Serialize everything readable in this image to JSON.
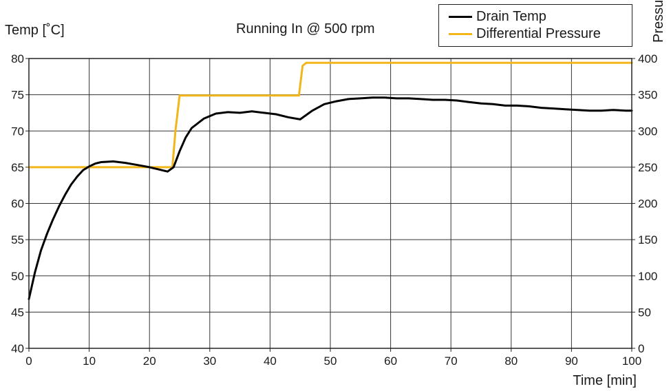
{
  "chart_data": {
    "type": "line",
    "title": "Running In @ 500 rpm",
    "xlabel": "Time [min]",
    "ylabel": "Temp [˚C]",
    "y2label": "Pressure",
    "xlim": [
      0,
      100
    ],
    "ylim": [
      40,
      80
    ],
    "y2lim": [
      0,
      400
    ],
    "xticks": [
      0,
      10,
      20,
      30,
      40,
      50,
      60,
      70,
      80,
      90,
      100
    ],
    "yticks": [
      40,
      45,
      50,
      55,
      60,
      65,
      70,
      75,
      80
    ],
    "y2ticks": [
      0,
      50,
      100,
      150,
      200,
      250,
      300,
      350,
      400
    ],
    "grid": true,
    "legend_position": "top-right",
    "series": [
      {
        "name": "Drain Temp",
        "color": "#000000",
        "axis": "left",
        "x": [
          0,
          1,
          2,
          3,
          4,
          5,
          6,
          7,
          8,
          9,
          10,
          11,
          12,
          14,
          16,
          18,
          20,
          22,
          23,
          24,
          25,
          26,
          27,
          29,
          31,
          33,
          35,
          37,
          39,
          41,
          43,
          45,
          47,
          49,
          51,
          53,
          55,
          57,
          59,
          61,
          63,
          65,
          67,
          69,
          71,
          73,
          75,
          77,
          79,
          81,
          83,
          85,
          87,
          89,
          91,
          93,
          95,
          97,
          99,
          100
        ],
        "values": [
          46.8,
          50.5,
          53.5,
          55.8,
          57.8,
          59.6,
          61.2,
          62.6,
          63.7,
          64.6,
          65.1,
          65.5,
          65.7,
          65.8,
          65.6,
          65.3,
          65.0,
          64.6,
          64.4,
          65.0,
          67.2,
          69.1,
          70.4,
          71.7,
          72.4,
          72.6,
          72.5,
          72.7,
          72.5,
          72.3,
          71.9,
          71.6,
          72.8,
          73.7,
          74.1,
          74.4,
          74.5,
          74.6,
          74.6,
          74.5,
          74.5,
          74.4,
          74.3,
          74.3,
          74.2,
          74.0,
          73.8,
          73.7,
          73.5,
          73.5,
          73.4,
          73.2,
          73.1,
          73.0,
          72.9,
          72.8,
          72.8,
          72.9,
          72.8,
          72.8
        ]
      },
      {
        "name": "Differential Pressure",
        "color": "#f2b61b",
        "axis": "right",
        "x": [
          0,
          5,
          10,
          15,
          20,
          23.8,
          24.3,
          25.0,
          30,
          35,
          40,
          44.8,
          45.4,
          46.0,
          50,
          60,
          70,
          80,
          90,
          100
        ],
        "values": [
          250,
          250,
          250,
          250,
          250,
          250,
          300,
          349,
          349,
          349,
          349,
          349,
          390,
          394,
          394,
          394,
          394,
          394,
          394,
          394
        ]
      }
    ]
  }
}
